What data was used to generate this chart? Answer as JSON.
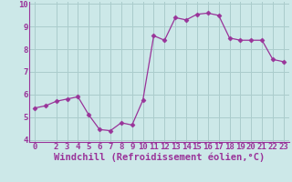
{
  "x": [
    0,
    1,
    2,
    3,
    4,
    5,
    6,
    7,
    8,
    9,
    10,
    11,
    12,
    13,
    14,
    15,
    16,
    17,
    18,
    19,
    20,
    21,
    22,
    23
  ],
  "y": [
    5.4,
    5.5,
    5.7,
    5.8,
    5.9,
    5.1,
    4.45,
    4.4,
    4.75,
    4.65,
    5.75,
    8.6,
    8.4,
    9.4,
    9.3,
    9.55,
    9.6,
    9.5,
    8.5,
    8.4,
    8.4,
    8.4,
    7.55,
    7.45
  ],
  "line_color": "#993399",
  "marker": "D",
  "marker_size": 2.5,
  "bg_color": "#cce8e8",
  "grid_color": "#aacccc",
  "xlabel": "Windchill (Refroidissement éolien,°C)",
  "xlim": [
    -0.5,
    23.5
  ],
  "ylim": [
    3.9,
    10.1
  ],
  "yticks": [
    4,
    5,
    6,
    7,
    8,
    9,
    10
  ],
  "xticks": [
    0,
    2,
    3,
    4,
    5,
    6,
    7,
    8,
    9,
    10,
    11,
    12,
    13,
    14,
    15,
    16,
    17,
    18,
    19,
    20,
    21,
    22,
    23
  ],
  "font_color": "#993399",
  "tick_fontsize": 6.5,
  "xlabel_fontsize": 7.5
}
